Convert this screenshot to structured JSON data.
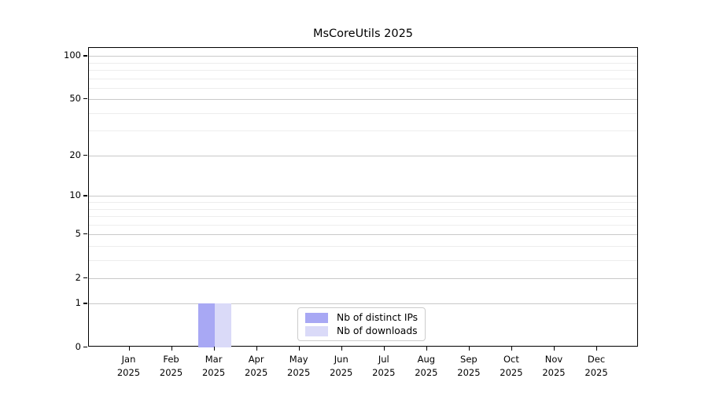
{
  "title": "MsCoreUtils 2025",
  "chart_data": {
    "type": "bar",
    "title": "MsCoreUtils 2025",
    "xlabel": "",
    "ylabel": "",
    "x_tick_months": [
      "Jan",
      "Feb",
      "Mar",
      "Apr",
      "May",
      "Jun",
      "Jul",
      "Aug",
      "Sep",
      "Oct",
      "Nov",
      "Dec"
    ],
    "x_tick_year": "2025",
    "y_scale": "log1p",
    "y_ticks": [
      0,
      1,
      2,
      5,
      10,
      20,
      50,
      100
    ],
    "y_minor_ticks": [
      3,
      4,
      6,
      7,
      8,
      9,
      30,
      40,
      60,
      70,
      80,
      90
    ],
    "ylim": [
      0,
      114
    ],
    "grid": true,
    "legend_position": "bottom-center",
    "series": [
      {
        "name": "Nb of distinct IPs",
        "color": "#a8a8f4",
        "values": [
          0,
          0,
          1,
          0,
          0,
          0,
          0,
          0,
          0,
          0,
          0,
          0
        ]
      },
      {
        "name": "Nb of downloads",
        "color": "#dadaf8",
        "values": [
          0,
          0,
          1,
          0,
          0,
          0,
          0,
          0,
          0,
          0,
          0,
          0
        ]
      }
    ]
  },
  "legend": {
    "items": [
      {
        "label": "Nb of distinct IPs",
        "color": "#a8a8f4"
      },
      {
        "label": "Nb of downloads",
        "color": "#dadaf8"
      }
    ]
  }
}
